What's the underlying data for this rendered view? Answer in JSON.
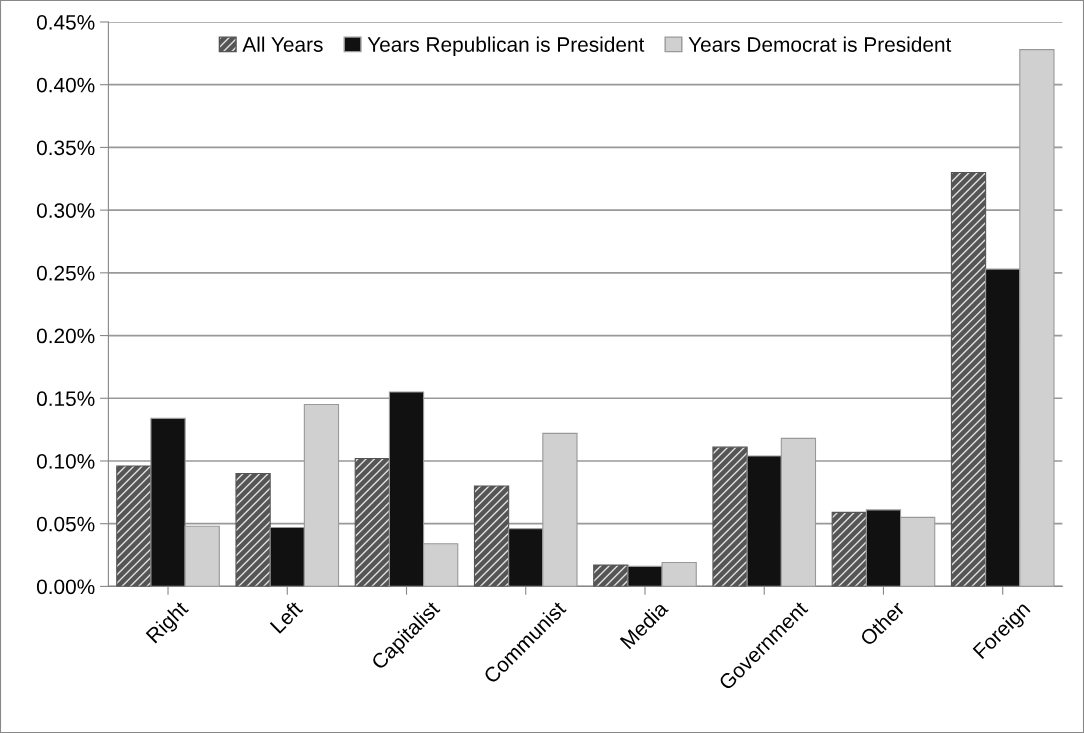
{
  "chart_data": {
    "type": "bar",
    "categories": [
      "Right",
      "Left",
      "Capitalist",
      "Communist",
      "Media",
      "Government",
      "Other",
      "Foreign"
    ],
    "series": [
      {
        "name": "All Years",
        "color": "#555555",
        "values": [
          0.096,
          0.09,
          0.102,
          0.08,
          0.017,
          0.111,
          0.059,
          0.33
        ]
      },
      {
        "name": "Years Republican is President",
        "color": "#111111",
        "values": [
          0.134,
          0.047,
          0.155,
          0.046,
          0.016,
          0.104,
          0.061,
          0.253
        ]
      },
      {
        "name": "Years Democrat is President",
        "color": "#d0d0d0",
        "values": [
          0.048,
          0.145,
          0.034,
          0.122,
          0.019,
          0.118,
          0.055,
          0.428
        ]
      }
    ],
    "ylim": [
      0,
      0.45
    ],
    "yticks": [
      {
        "value": 0,
        "label": "0.00%"
      },
      {
        "value": 0.05,
        "label": "0.05%"
      },
      {
        "value": 0.1,
        "label": "0.10%"
      },
      {
        "value": 0.15,
        "label": "0.15%"
      },
      {
        "value": 0.2,
        "label": "0.20%"
      },
      {
        "value": 0.25,
        "label": "0.25%"
      },
      {
        "value": 0.3,
        "label": "0.30%"
      },
      {
        "value": 0.35,
        "label": "0.35%"
      },
      {
        "value": 0.4,
        "label": "0.40%"
      },
      {
        "value": 0.45,
        "label": "0.45%"
      }
    ],
    "grid": "y",
    "legend": "top"
  }
}
